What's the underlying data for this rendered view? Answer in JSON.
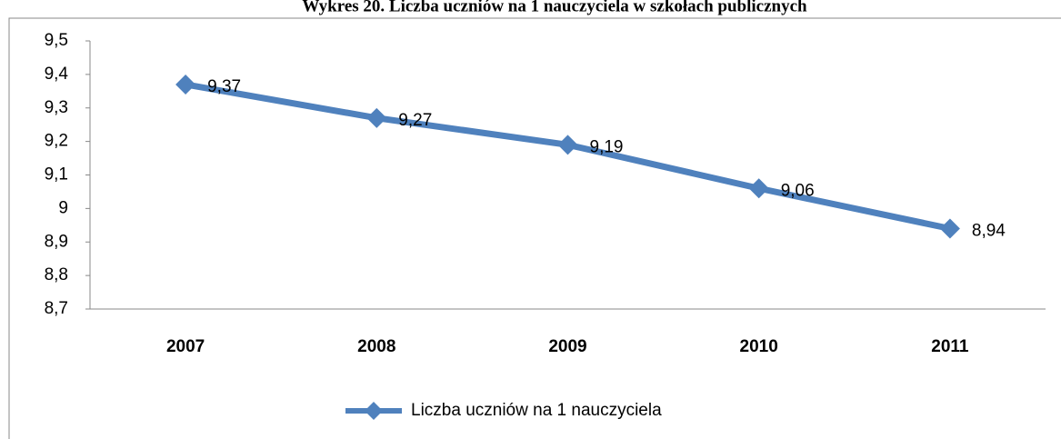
{
  "chart_data": {
    "type": "line",
    "title": "Wykres 20. Liczba uczniów na 1 nauczyciela w szkołach publicznych",
    "categories": [
      "2007",
      "2008",
      "2009",
      "2010",
      "2011"
    ],
    "series": [
      {
        "name": "Liczba uczniów na 1 nauczyciela",
        "color": "#4f81bd",
        "values": [
          9.37,
          9.27,
          9.19,
          9.06,
          8.94
        ],
        "value_labels": [
          "9,37",
          "9,27",
          "9,19",
          "9,06",
          "8,94"
        ]
      }
    ],
    "ylim": [
      8.7,
      9.5
    ],
    "yticks": [
      {
        "value": 8.7,
        "label": "8,7"
      },
      {
        "value": 8.8,
        "label": "8,8"
      },
      {
        "value": 8.9,
        "label": "8,9"
      },
      9,
      {
        "value": 9.1,
        "label": "9,1"
      },
      {
        "value": 9.2,
        "label": "9,2"
      },
      {
        "value": 9.3,
        "label": "9,3"
      },
      {
        "value": 9.4,
        "label": "9,4"
      },
      {
        "value": 9.5,
        "label": "9,5"
      }
    ],
    "legend": "bottom"
  }
}
